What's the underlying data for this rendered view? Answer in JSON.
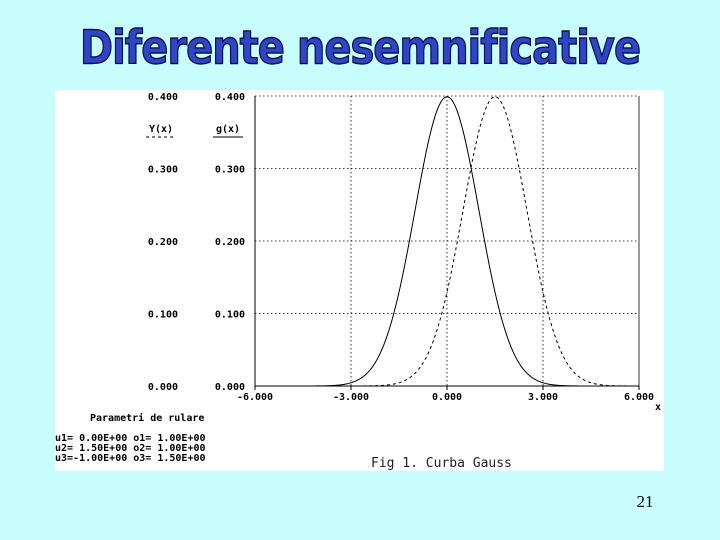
{
  "slide": {
    "title": "Diferente nesemnificative",
    "page_number": "21"
  },
  "colors": {
    "background": "#c8fdfd",
    "title_fill": "#2f45c7",
    "title_outline": "#0b114f",
    "plot_bg": "#ffffff",
    "curve": "#000000"
  },
  "chart_data": {
    "type": "line",
    "title": "",
    "caption": "Fig 1. Curba Gauss",
    "xlabel": "x",
    "x_ticks": [
      "-6.000",
      "-3.000",
      "0.000",
      "3.000",
      "6.000"
    ],
    "xlim": [
      -6,
      6
    ],
    "ylim": [
      0,
      0.4
    ],
    "y_axes": [
      {
        "label": "Y(x)",
        "ticks": [
          "0.400",
          "0.300",
          "0.200",
          "0.100",
          "0.000"
        ]
      },
      {
        "label": "g(x)",
        "ticks": [
          "0.400",
          "0.300",
          "0.200",
          "0.100",
          "0.000"
        ]
      }
    ],
    "grid": true,
    "series": [
      {
        "name": "Y(x)",
        "style": "dashed",
        "mu": 1.5,
        "sigma": 1.0,
        "x": [
          -1.5,
          -0.5,
          0.5,
          1.0,
          1.5,
          2.0,
          2.5,
          3.5,
          4.5
        ],
        "y": [
          0.004,
          0.054,
          0.242,
          0.352,
          0.399,
          0.352,
          0.242,
          0.054,
          0.004
        ]
      },
      {
        "name": "g(x)",
        "style": "solid",
        "mu": 0.0,
        "sigma": 1.0,
        "x": [
          -3.0,
          -2.0,
          -1.0,
          -0.5,
          0.0,
          0.5,
          1.0,
          2.0,
          3.0
        ],
        "y": [
          0.004,
          0.054,
          0.242,
          0.352,
          0.399,
          0.352,
          0.242,
          0.054,
          0.004
        ]
      }
    ],
    "parameters": {
      "title": "Parametri de rulare",
      "rows": [
        "u1= 0.00E+00 o1= 1.00E+00",
        "u2= 1.50E+00 o2= 1.00E+00",
        "u3=-1.00E+00 o3= 1.50E+00"
      ]
    }
  }
}
